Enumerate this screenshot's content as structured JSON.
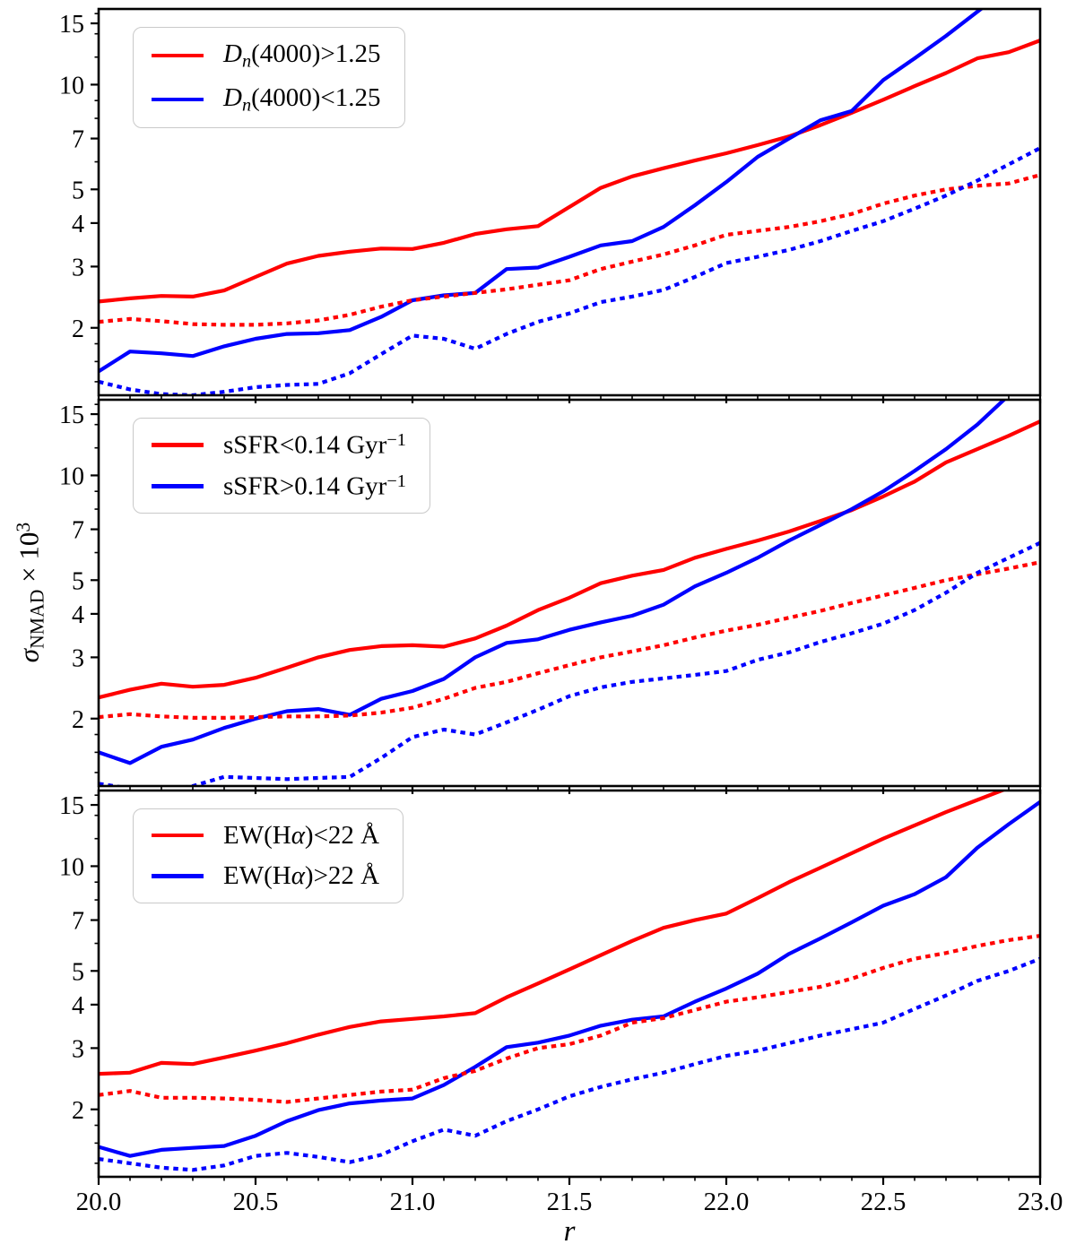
{
  "figure": {
    "x_label": "r",
    "y_label_segments": [
      {
        "t": "σ",
        "s": "i"
      },
      {
        "t": "NMAD",
        "s": "sub"
      },
      {
        "t": " × 10",
        "s": ""
      },
      {
        "t": "3",
        "s": "sup"
      }
    ],
    "x_tick_labels": [
      "20.0",
      "20.5",
      "21.0",
      "21.5",
      "22.0",
      "22.5",
      "23.0"
    ],
    "y_tick_labels": [
      "2",
      "3",
      "4",
      "5",
      "7",
      "10",
      "15"
    ],
    "colors": {
      "red": "#ff0000",
      "blue": "#0000ff",
      "axis": "#000000",
      "legend_border": "#c9c9c9"
    }
  },
  "chart_data": [
    {
      "type": "line",
      "panel": "top",
      "yscale": "log",
      "xlim": [
        20.0,
        23.0
      ],
      "ylim": [
        1.28,
        16.5
      ],
      "y_ticks": [
        2,
        3,
        4,
        5,
        7,
        10,
        15
      ],
      "y_minor_ticks": [
        1.4,
        1.6,
        1.8,
        6,
        8,
        9,
        12,
        14,
        16
      ],
      "x_major_step": 0.5,
      "x_minor_step": 0.1,
      "legend": [
        {
          "segments": [
            {
              "t": "D",
              "s": "i"
            },
            {
              "t": "n",
              "s": "sub i"
            },
            {
              "t": "(4000)>1.25",
              "s": ""
            }
          ],
          "color": "red",
          "style": "solid"
        },
        {
          "segments": [
            {
              "t": "D",
              "s": "i"
            },
            {
              "t": "n",
              "s": "sub i"
            },
            {
              "t": "(4000)<1.25",
              "s": ""
            }
          ],
          "color": "blue",
          "style": "solid"
        }
      ],
      "x": [
        20.0,
        20.1,
        20.2,
        20.3,
        20.4,
        20.5,
        20.6,
        20.7,
        20.8,
        20.9,
        21.0,
        21.1,
        21.2,
        21.3,
        21.4,
        21.5,
        21.6,
        21.7,
        21.8,
        21.9,
        22.0,
        22.1,
        22.2,
        22.3,
        22.4,
        22.5,
        22.6,
        22.7,
        22.8,
        22.9,
        23.0
      ],
      "series": [
        {
          "name": "red_solid",
          "color": "red",
          "dash": "solid",
          "values": [
            2.38,
            2.43,
            2.47,
            2.46,
            2.56,
            2.8,
            3.06,
            3.22,
            3.31,
            3.38,
            3.37,
            3.51,
            3.72,
            3.84,
            3.92,
            4.45,
            5.05,
            5.45,
            5.75,
            6.05,
            6.35,
            6.7,
            7.1,
            7.65,
            8.3,
            9.05,
            9.9,
            10.8,
            11.9,
            12.4,
            13.4
          ]
        },
        {
          "name": "blue_solid",
          "color": "blue",
          "dash": "solid",
          "values": [
            1.5,
            1.71,
            1.69,
            1.66,
            1.77,
            1.86,
            1.92,
            1.93,
            1.97,
            2.15,
            2.4,
            2.48,
            2.52,
            2.95,
            2.98,
            3.2,
            3.45,
            3.55,
            3.9,
            4.5,
            5.25,
            6.2,
            7.0,
            7.9,
            8.4,
            10.3,
            11.9,
            13.8,
            16.2,
            19.0,
            22.5
          ]
        },
        {
          "name": "red_dotted",
          "color": "red",
          "dash": "dotted",
          "values": [
            2.08,
            2.12,
            2.09,
            2.05,
            2.04,
            2.04,
            2.06,
            2.1,
            2.18,
            2.3,
            2.4,
            2.46,
            2.52,
            2.58,
            2.66,
            2.74,
            2.95,
            3.1,
            3.25,
            3.45,
            3.7,
            3.8,
            3.9,
            4.05,
            4.25,
            4.55,
            4.8,
            5.0,
            5.12,
            5.2,
            5.5
          ]
        },
        {
          "name": "blue_dotted",
          "color": "blue",
          "dash": "dotted",
          "values": [
            1.4,
            1.33,
            1.29,
            1.28,
            1.31,
            1.35,
            1.37,
            1.38,
            1.48,
            1.68,
            1.9,
            1.86,
            1.74,
            1.92,
            2.08,
            2.2,
            2.37,
            2.46,
            2.57,
            2.8,
            3.07,
            3.2,
            3.35,
            3.55,
            3.8,
            4.05,
            4.4,
            4.8,
            5.3,
            5.9,
            6.57
          ]
        }
      ]
    },
    {
      "type": "line",
      "panel": "middle",
      "yscale": "log",
      "xlim": [
        20.0,
        23.0
      ],
      "ylim": [
        1.28,
        16.5
      ],
      "y_ticks": [
        2,
        3,
        4,
        5,
        7,
        10,
        15
      ],
      "y_minor_ticks": [
        1.4,
        1.6,
        1.8,
        6,
        8,
        9,
        12,
        14,
        16
      ],
      "x_major_step": 0.5,
      "x_minor_step": 0.1,
      "legend": [
        {
          "segments": [
            {
              "t": "sSFR<0.14 Gyr",
              "s": ""
            },
            {
              "t": "−1",
              "s": "sup"
            }
          ],
          "color": "red",
          "style": "solid"
        },
        {
          "segments": [
            {
              "t": "sSFR>0.14 Gyr",
              "s": ""
            },
            {
              "t": "−1",
              "s": "sup"
            }
          ],
          "color": "blue",
          "style": "solid"
        }
      ],
      "x": [
        20.0,
        20.1,
        20.2,
        20.3,
        20.4,
        20.5,
        20.6,
        20.7,
        20.8,
        20.9,
        21.0,
        21.1,
        21.2,
        21.3,
        21.4,
        21.5,
        21.6,
        21.7,
        21.8,
        21.9,
        22.0,
        22.1,
        22.2,
        22.3,
        22.4,
        22.5,
        22.6,
        22.7,
        22.8,
        22.9,
        23.0
      ],
      "series": [
        {
          "name": "red_solid",
          "color": "red",
          "dash": "solid",
          "values": [
            2.3,
            2.42,
            2.52,
            2.47,
            2.5,
            2.62,
            2.8,
            3.0,
            3.15,
            3.23,
            3.25,
            3.22,
            3.4,
            3.7,
            4.1,
            4.45,
            4.9,
            5.15,
            5.35,
            5.8,
            6.15,
            6.5,
            6.9,
            7.4,
            7.95,
            8.7,
            9.6,
            10.9,
            11.9,
            13.0,
            14.3
          ]
        },
        {
          "name": "blue_solid",
          "color": "blue",
          "dash": "solid",
          "values": [
            1.6,
            1.49,
            1.66,
            1.74,
            1.88,
            2.0,
            2.1,
            2.13,
            2.05,
            2.28,
            2.4,
            2.6,
            3.0,
            3.3,
            3.38,
            3.6,
            3.78,
            3.95,
            4.25,
            4.8,
            5.25,
            5.8,
            6.5,
            7.2,
            8.0,
            9.0,
            10.3,
            11.9,
            14.0,
            17.0,
            20.5
          ]
        },
        {
          "name": "red_dotted",
          "color": "red",
          "dash": "dotted",
          "values": [
            2.02,
            2.06,
            2.03,
            2.01,
            2.01,
            2.02,
            2.03,
            2.03,
            2.04,
            2.08,
            2.15,
            2.28,
            2.45,
            2.55,
            2.7,
            2.85,
            3.0,
            3.12,
            3.25,
            3.42,
            3.58,
            3.72,
            3.9,
            4.08,
            4.3,
            4.52,
            4.75,
            5.0,
            5.2,
            5.4,
            5.63
          ]
        },
        {
          "name": "blue_dotted",
          "color": "blue",
          "dash": "dotted",
          "values": [
            1.3,
            1.26,
            1.24,
            1.28,
            1.36,
            1.35,
            1.34,
            1.35,
            1.36,
            1.54,
            1.77,
            1.86,
            1.8,
            1.95,
            2.12,
            2.32,
            2.46,
            2.55,
            2.61,
            2.67,
            2.74,
            2.95,
            3.1,
            3.32,
            3.52,
            3.75,
            4.1,
            4.6,
            5.25,
            5.8,
            6.4
          ]
        }
      ]
    },
    {
      "type": "line",
      "panel": "bottom",
      "yscale": "log",
      "xlim": [
        20.0,
        23.0
      ],
      "ylim": [
        1.28,
        16.5
      ],
      "y_ticks": [
        2,
        3,
        4,
        5,
        7,
        10,
        15
      ],
      "y_minor_ticks": [
        1.4,
        1.6,
        1.8,
        6,
        8,
        9,
        12,
        14,
        16
      ],
      "x_major_step": 0.5,
      "x_minor_step": 0.1,
      "legend": [
        {
          "segments": [
            {
              "t": "EW(H",
              "s": ""
            },
            {
              "t": "α",
              "s": "i"
            },
            {
              "t": ")<22 Å",
              "s": ""
            }
          ],
          "color": "red",
          "style": "solid"
        },
        {
          "segments": [
            {
              "t": "EW(H",
              "s": ""
            },
            {
              "t": "α",
              "s": "i"
            },
            {
              "t": ")>22 Å",
              "s": ""
            }
          ],
          "color": "blue",
          "style": "solid"
        }
      ],
      "x": [
        20.0,
        20.1,
        20.2,
        20.3,
        20.4,
        20.5,
        20.6,
        20.7,
        20.8,
        20.9,
        21.0,
        21.1,
        21.2,
        21.3,
        21.4,
        21.5,
        21.6,
        21.7,
        21.8,
        21.9,
        22.0,
        22.1,
        22.2,
        22.3,
        22.4,
        22.5,
        22.6,
        22.7,
        22.8,
        22.9,
        23.0
      ],
      "series": [
        {
          "name": "red_solid",
          "color": "red",
          "dash": "solid",
          "values": [
            2.53,
            2.55,
            2.72,
            2.7,
            2.82,
            2.95,
            3.1,
            3.28,
            3.45,
            3.58,
            3.64,
            3.7,
            3.78,
            4.2,
            4.6,
            5.05,
            5.55,
            6.1,
            6.65,
            7.0,
            7.31,
            8.1,
            9.0,
            9.9,
            10.9,
            12.0,
            13.1,
            14.3,
            15.5,
            16.8,
            18.2
          ]
        },
        {
          "name": "blue_solid",
          "color": "blue",
          "dash": "solid",
          "values": [
            1.56,
            1.47,
            1.53,
            1.55,
            1.57,
            1.68,
            1.85,
            1.99,
            2.08,
            2.12,
            2.15,
            2.35,
            2.65,
            3.02,
            3.11,
            3.26,
            3.48,
            3.62,
            3.7,
            4.08,
            4.45,
            4.91,
            5.6,
            6.2,
            6.9,
            7.7,
            8.31,
            9.3,
            11.3,
            13.2,
            15.3
          ]
        },
        {
          "name": "red_dotted",
          "color": "red",
          "dash": "dotted",
          "values": [
            2.2,
            2.26,
            2.16,
            2.16,
            2.15,
            2.13,
            2.1,
            2.15,
            2.2,
            2.25,
            2.28,
            2.46,
            2.58,
            2.8,
            3.0,
            3.08,
            3.26,
            3.55,
            3.66,
            3.86,
            4.08,
            4.2,
            4.35,
            4.5,
            4.75,
            5.1,
            5.42,
            5.63,
            5.9,
            6.13,
            6.31
          ]
        },
        {
          "name": "blue_dotted",
          "color": "blue",
          "dash": "dotted",
          "values": [
            1.44,
            1.4,
            1.36,
            1.34,
            1.38,
            1.47,
            1.5,
            1.46,
            1.41,
            1.48,
            1.62,
            1.75,
            1.68,
            1.85,
            2.0,
            2.18,
            2.32,
            2.44,
            2.55,
            2.7,
            2.85,
            2.95,
            3.1,
            3.26,
            3.4,
            3.55,
            3.89,
            4.25,
            4.68,
            5.0,
            5.42
          ]
        }
      ]
    }
  ]
}
